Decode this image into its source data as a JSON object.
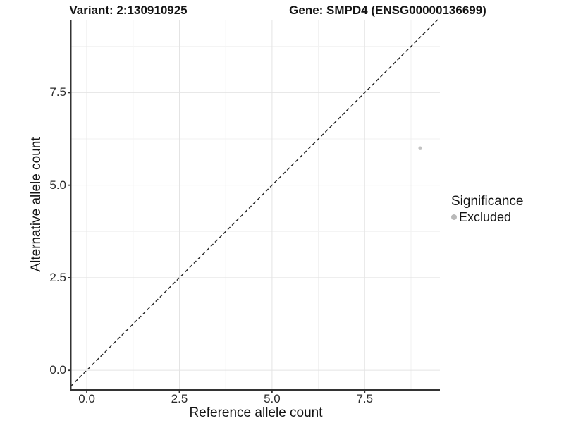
{
  "chart_data": {
    "type": "scatter",
    "titles": {
      "left": "Variant: 2:130910925",
      "right": "Gene: SMPD4 (ENSG00000136699)"
    },
    "xlabel": "Reference allele count",
    "ylabel": "Alternative allele count",
    "x_tick_labels": [
      "0.0",
      "2.5",
      "5.0",
      "7.5"
    ],
    "y_tick_labels": [
      "0.0",
      "2.5",
      "5.0",
      "7.5"
    ],
    "x_tick_values": [
      0,
      2.5,
      5,
      7.5
    ],
    "y_tick_values": [
      0,
      2.5,
      5,
      7.5
    ],
    "xlim": [
      -0.43,
      9.53
    ],
    "ylim": [
      -0.53,
      9.47
    ],
    "grid": true,
    "points": [
      {
        "x": 9,
        "y": 6,
        "significance": "Excluded"
      }
    ],
    "reference_line": {
      "slope": 1,
      "intercept": 0,
      "style": "dashed"
    },
    "legend": {
      "title": "Significance",
      "position": "right",
      "entries": [
        {
          "label": "Excluded",
          "color": "#b9b9b9"
        }
      ]
    }
  },
  "colors": {
    "background": "#ffffff",
    "grid_major": "#e4e4e4",
    "grid_minor": "#f1f1f1",
    "axis_line": "#333333",
    "tick_mark": "#333333",
    "dashed_line": "#222222",
    "point": "#c3c3c3",
    "text": "#141414"
  }
}
